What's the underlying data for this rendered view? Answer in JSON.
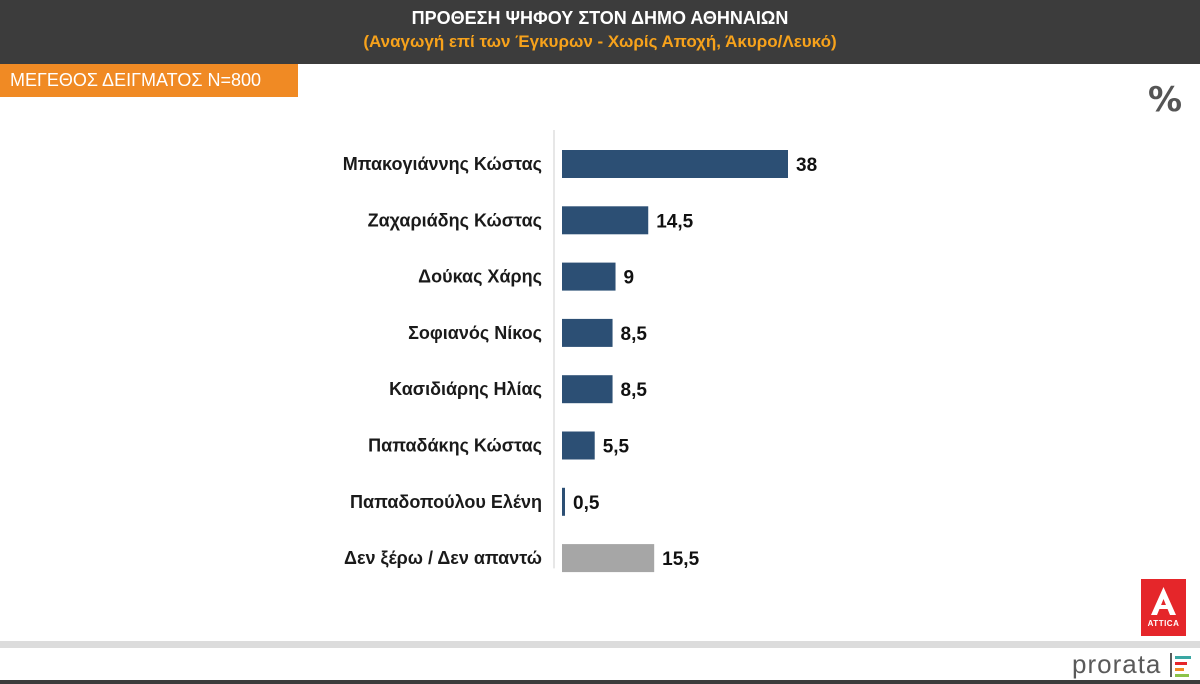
{
  "header": {
    "title": "ΠΡΟΘΕΣΗ ΨΗΦΟΥ ΣΤΟΝ ΔΗΜΟ ΑΘΗΝΑΙΩΝ",
    "subtitle": "(Αναγωγή επί των Έγκυρων - Χωρίς Αποχή, Άκυρο/Λευκό)"
  },
  "sample_badge": "ΜΕΓΕΘΟΣ ΔΕΙΓΜΑΤΟΣ Ν=800",
  "unit_symbol": "%",
  "logos": {
    "attica_text": "ATTICA",
    "prorata_text": "prorata"
  },
  "colors": {
    "bar_primary": "#2c4f74",
    "bar_undecided": "#a6a6a6",
    "header_bg": "#3c3c3c",
    "subtitle": "#f7a21b",
    "badge_bg": "#f08a24",
    "attica_red": "#e5262a"
  },
  "chart_data": {
    "type": "bar",
    "orientation": "horizontal",
    "categories": [
      "Μπακογιάννης Κώστας",
      "Ζαχαριάδης Κώστας",
      "Δούκας Χάρης",
      "Σοφιανός Νίκος",
      "Κασιδιάρης Ηλίας",
      "Παπαδάκης Κώστας",
      "Παπαδοπούλου Ελένη",
      "Δεν ξέρω / Δεν απαντώ"
    ],
    "values": [
      38,
      14.5,
      9,
      8.5,
      8.5,
      5.5,
      0.5,
      15.5
    ],
    "value_labels": [
      "38",
      "14,5",
      "9",
      "8,5",
      "8,5",
      "5,5",
      "0,5",
      "15,5"
    ],
    "highlight_last_in_grey": true,
    "xlim": [
      0,
      40
    ],
    "grid": false,
    "legend": "none"
  }
}
